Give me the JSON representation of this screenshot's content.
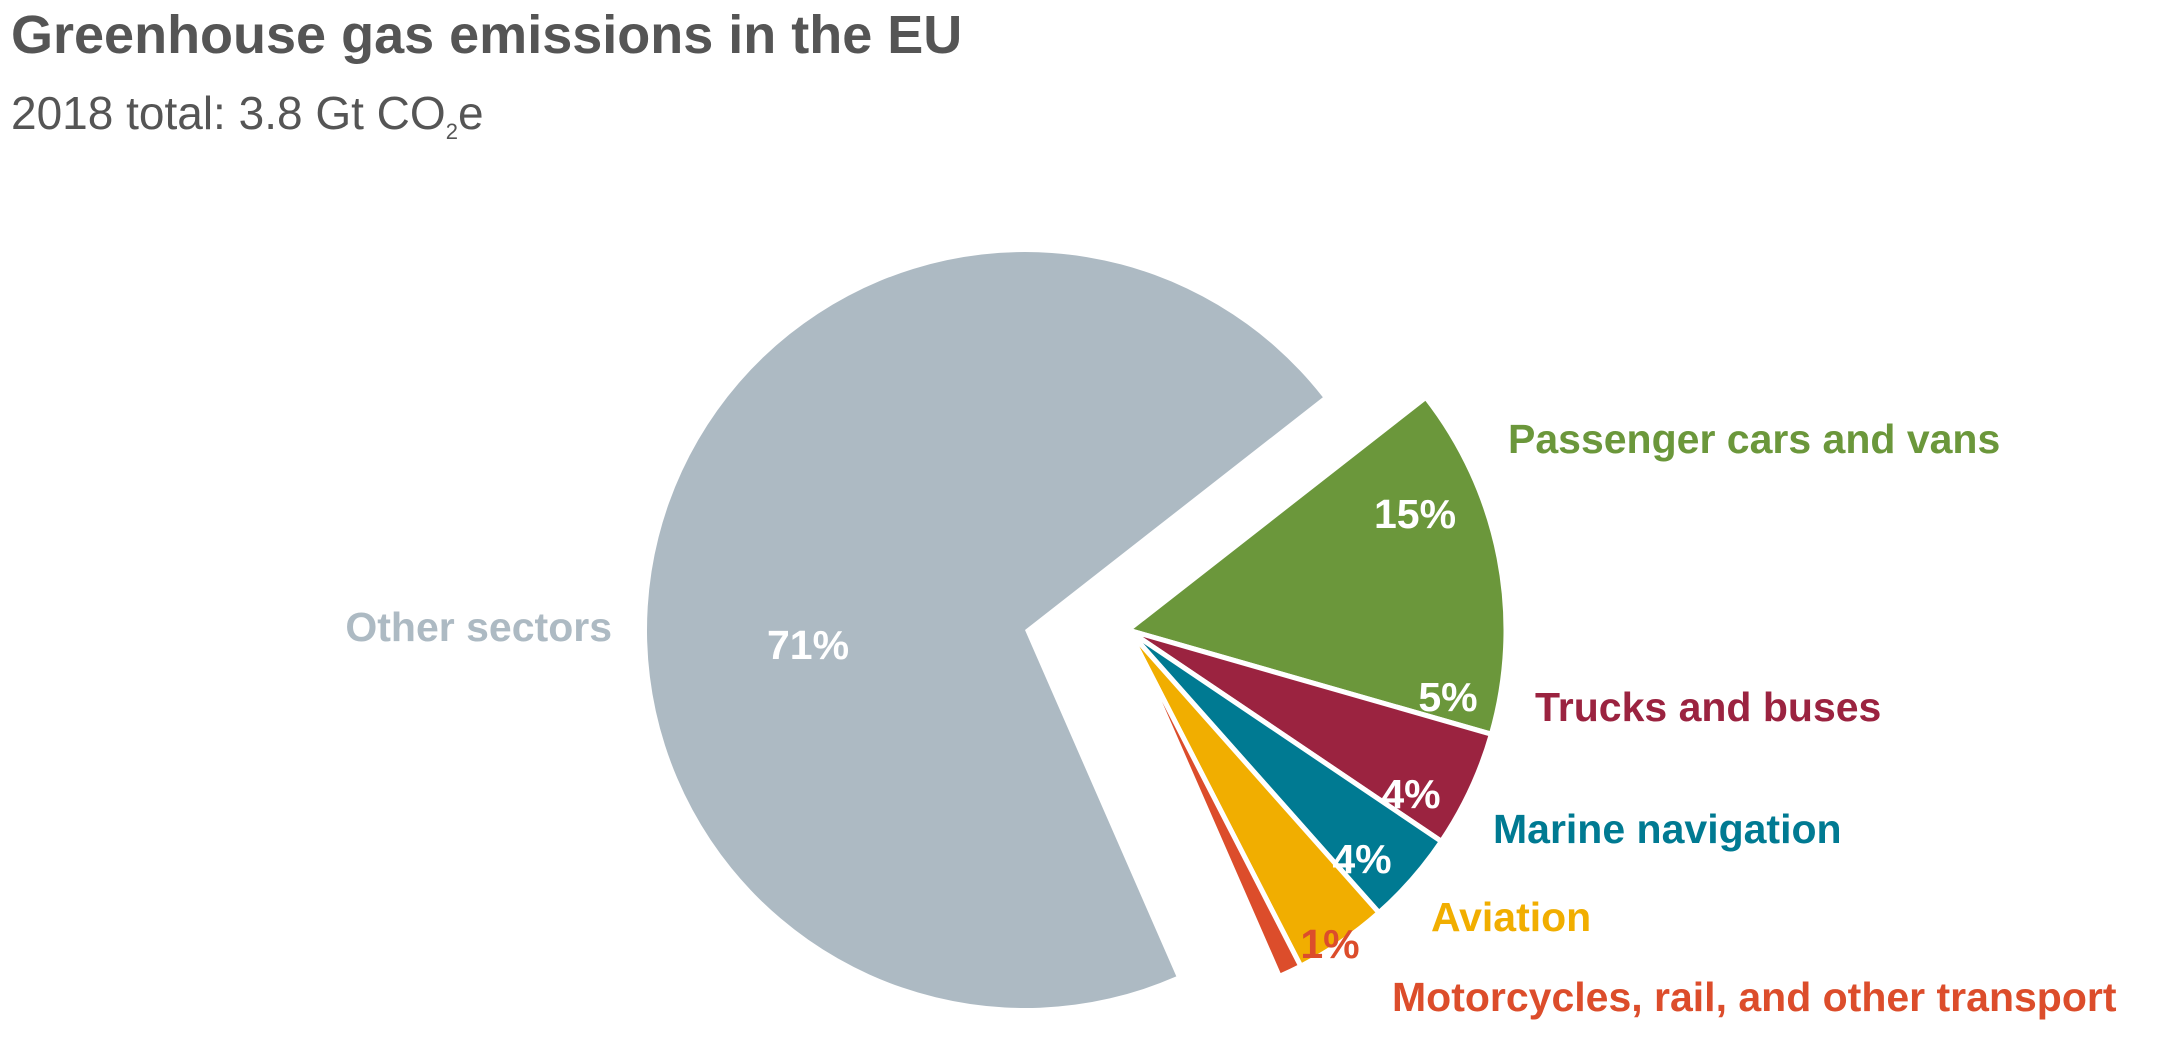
{
  "chart_data": {
    "type": "pie",
    "title": "Greenhouse gas emissions in the EU",
    "subtitle": {
      "prefix": "2018 total: 3.8 Gt CO",
      "subscript": "2",
      "suffix": "e"
    },
    "slices": [
      {
        "label": "Other sectors",
        "value": 71,
        "value_label": "71%",
        "color": "#adbac3",
        "label_color": "#adbac3",
        "value_color": "#ffffff"
      },
      {
        "label": "Passenger cars and vans",
        "value": 15,
        "value_label": "15%",
        "color": "#6b973b",
        "label_color": "#6b973b",
        "value_color": "#ffffff"
      },
      {
        "label": "Trucks and buses",
        "value": 5,
        "value_label": "5%",
        "color": "#9b2340",
        "label_color": "#9b2340",
        "value_color": "#ffffff"
      },
      {
        "label": "Marine navigation",
        "value": 4,
        "value_label": "4%",
        "color": "#007a92",
        "label_color": "#007a92",
        "value_color": "#ffffff"
      },
      {
        "label": "Aviation",
        "value": 4,
        "value_label": "4%",
        "color": "#f1ae00",
        "label_color": "#f1ae00",
        "value_color": "#ffffff"
      },
      {
        "label": "Motorcycles, rail, and other transport",
        "value": 1,
        "value_label": "1%",
        "color": "#dc4d2b",
        "label_color": "#dc4d2b",
        "value_color": "#dc4d2b"
      }
    ]
  }
}
